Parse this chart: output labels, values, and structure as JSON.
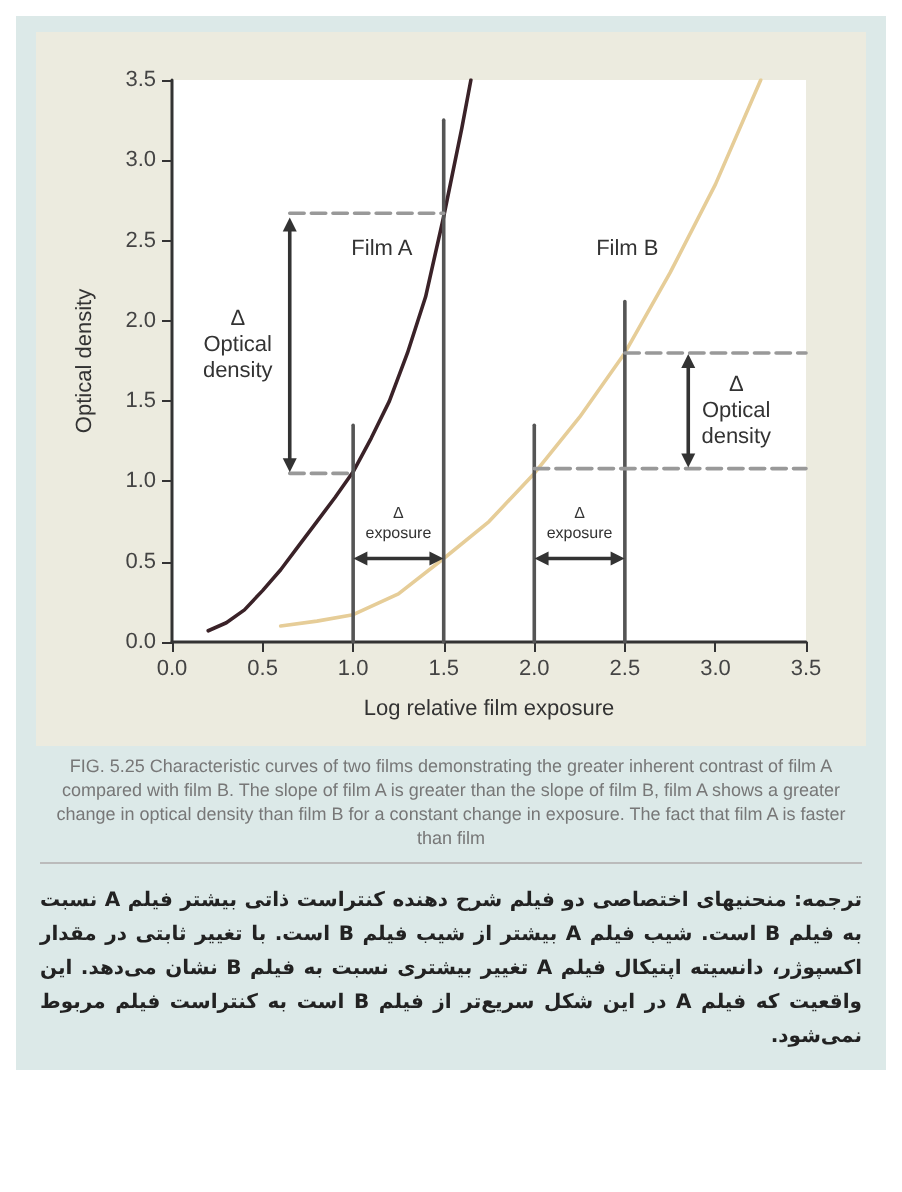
{
  "chart_data": {
    "type": "line",
    "xlabel": "Log relative film exposure",
    "ylabel": "Optical density",
    "xlim": [
      0,
      3.5
    ],
    "ylim": [
      0,
      3.5
    ],
    "xticks": [
      {
        "value": 0,
        "label": "0.0"
      },
      0.5,
      {
        "value": 1,
        "label": "1.0"
      },
      1.5,
      {
        "value": 2,
        "label": "2.0"
      },
      2.5,
      {
        "value": 3,
        "label": "3.0"
      },
      3.5
    ],
    "yticks": [
      {
        "value": 0,
        "label": "0.0"
      },
      0.5,
      {
        "value": 1,
        "label": "1.0"
      },
      1.5,
      {
        "value": 2,
        "label": "2.0"
      },
      2.5,
      {
        "value": 3,
        "label": "3.0"
      },
      3.5
    ],
    "grid": false,
    "legend": false,
    "marker": "none",
    "line_style": "solid",
    "series": [
      {
        "name": "Film A",
        "color": "#3a2228",
        "x": [
          0.2,
          0.3,
          0.4,
          0.5,
          0.6,
          0.7,
          0.8,
          0.9,
          1.0,
          1.1,
          1.2,
          1.3,
          1.4,
          1.5,
          1.6,
          1.65
        ],
        "values": [
          0.07,
          0.12,
          0.2,
          0.32,
          0.45,
          0.6,
          0.75,
          0.9,
          1.06,
          1.27,
          1.5,
          1.8,
          2.15,
          2.65,
          3.2,
          3.5
        ]
      },
      {
        "name": "Film B",
        "color": "#e6cd98",
        "x": [
          0.6,
          0.8,
          1.0,
          1.25,
          1.5,
          1.75,
          2.0,
          2.25,
          2.5,
          2.75,
          3.0,
          3.25
        ],
        "values": [
          0.1,
          0.13,
          0.17,
          0.3,
          0.52,
          0.75,
          1.05,
          1.4,
          1.8,
          2.3,
          2.85,
          3.5
        ]
      },
      {
        "color": "#555555",
        "x": [
          1,
          1
        ],
        "values": [
          0,
          1.35
        ]
      },
      {
        "color": "#555555",
        "x": [
          1.5,
          1.5
        ],
        "values": [
          0,
          3.25
        ]
      },
      {
        "color": "#555555",
        "x": [
          2,
          2
        ],
        "values": [
          0,
          1.35
        ]
      },
      {
        "color": "#555555",
        "x": [
          2.5,
          2.5
        ],
        "values": [
          0,
          2.12
        ]
      },
      {
        "color": "#999999",
        "line_style": "dashed",
        "x": [
          0.65,
          1.0
        ],
        "values": [
          1.05,
          1.05
        ]
      },
      {
        "color": "#999999",
        "line_style": "dashed",
        "x": [
          0.65,
          1.5
        ],
        "values": [
          2.67,
          2.67
        ]
      },
      {
        "color": "#999999",
        "line_style": "dashed",
        "x": [
          2.0,
          3.5
        ],
        "values": [
          1.08,
          1.08
        ]
      },
      {
        "color": "#999999",
        "line_style": "dashed",
        "x": [
          2.5,
          3.5
        ],
        "values": [
          1.8,
          1.8
        ]
      },
      {
        "name": "Δ\nOptical\ndensity",
        "color": "#333333",
        "marker": "triangle",
        "x": [
          0.65,
          0.65
        ],
        "values": [
          2.6,
          1.1
        ]
      },
      {
        "name": "Δ\nOptical\ndensity",
        "color": "#333333",
        "marker": "triangle",
        "x": [
          2.85,
          2.85
        ],
        "values": [
          1.75,
          1.13
        ]
      },
      {
        "name": "Δ\nexposure",
        "color": "#333333",
        "marker": "triangle",
        "x": [
          1.04,
          1.46
        ],
        "values": [
          0.52,
          0.52
        ]
      },
      {
        "name": "Δ\nexposure",
        "color": "#333333",
        "marker": "triangle",
        "x": [
          2.04,
          2.46
        ],
        "values": [
          0.52,
          0.52
        ]
      }
    ],
    "annotations": [
      "FIG. 5.25  Characteristic curves of two films demonstrating the greater inherent contrast of film A compared with film B. The slope of film A is greater than the slope of film B, film A shows a greater change in optical density than film B for a constant change in exposure. The fact that film A is faster than film",
      "ترجمه: منحنیهای اختصاصی دو فیلم شرح دهنده کنتراست ذاتی بیشتر فیلم A نسبت به فیلم B است. شیب فیلم A بیشتر از شیب فیلم B است. با تغییر ثابتی در مقدار اکسپوژر، دانسیته اپتیکال فیلم A تغییر بیشتری نسبت به فیلم B نشان می‌دهد. این واقعیت که فیلم A در این شکل سریع‌تر از فیلم B است به کنتراست فیلم مربوط نمی‌شود."
    ]
  }
}
